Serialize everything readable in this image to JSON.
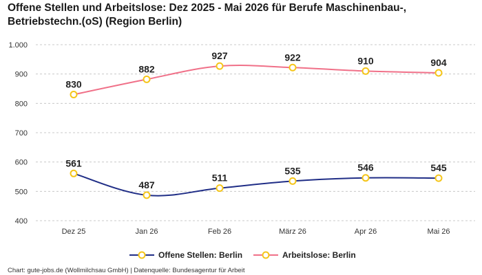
{
  "title": "Offene Stellen und Arbeitslose: Dez 2025 - Mai 2026 für Berufe Maschinenbau-, Betriebstechn.(oS) (Region Berlin)",
  "footer": "Chart: gute-jobs.de (Wollmilchsau GmbH) | Datenquelle: Bundesagentur für Arbeit",
  "colors": {
    "offene_stellen": "#1f2d86",
    "arbeitslose": "#f07088",
    "marker_stroke": "#f5c518",
    "grid": "#c8c8c8"
  },
  "chart_data": {
    "type": "line",
    "title": "Offene Stellen und Arbeitslose: Dez 2025 - Mai 2026 für Berufe Maschinenbau-, Betriebstechn.(oS) (Region Berlin)",
    "xlabel": "",
    "ylabel": "",
    "categories": [
      "Dez 25",
      "Jan 26",
      "Feb 26",
      "März 26",
      "Apr 26",
      "Mai 26"
    ],
    "ylim": [
      400,
      1000
    ],
    "yticks": [
      400,
      500,
      600,
      700,
      800,
      900,
      1000
    ],
    "ytick_labels": [
      "400",
      "500",
      "600",
      "700",
      "800",
      "900",
      "1.000"
    ],
    "grid": true,
    "legend_position": "bottom",
    "series": [
      {
        "name": "Offene Stellen: Berlin",
        "values": [
          561,
          487,
          511,
          535,
          546,
          545
        ]
      },
      {
        "name": "Arbeitslose: Berlin",
        "values": [
          830,
          882,
          927,
          922,
          910,
          904
        ]
      }
    ]
  }
}
